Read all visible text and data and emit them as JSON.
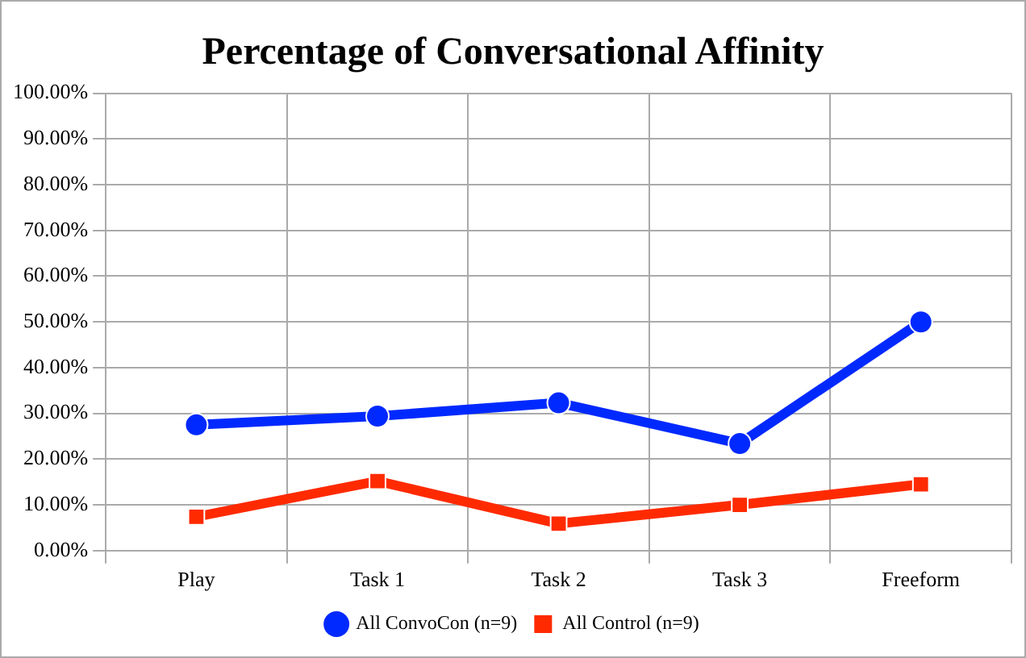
{
  "chart_data": {
    "type": "line",
    "title": "Percentage of Conversational Affinity",
    "categories": [
      "Play",
      "Task 1",
      "Task 2",
      "Task 3",
      "Freeform"
    ],
    "series": [
      {
        "name": "All ConvoCon (n=9)",
        "color": "#0029ff",
        "marker": "circle",
        "values": [
          27.5,
          29.4,
          32.3,
          23.4,
          50
        ]
      },
      {
        "name": "All Control (n=9)",
        "color": "#ff2a00",
        "marker": "square",
        "values": [
          7.4,
          15.2,
          5.9,
          10,
          14.5
        ]
      }
    ],
    "ylim": [
      0,
      100
    ],
    "yticks": [
      {
        "value": 0,
        "label": "0.00%"
      },
      {
        "value": 10,
        "label": "10.00%"
      },
      {
        "value": 20,
        "label": "20.00%"
      },
      {
        "value": 30,
        "label": "30.00%"
      },
      {
        "value": 40,
        "label": "40.00%"
      },
      {
        "value": 50,
        "label": "50.00%"
      },
      {
        "value": 60,
        "label": "60.00%"
      },
      {
        "value": 70,
        "label": "70.00%"
      },
      {
        "value": 80,
        "label": "80.00%"
      },
      {
        "value": 90,
        "label": "90.00%"
      },
      {
        "value": 100,
        "label": "100.00%"
      }
    ],
    "grid": true,
    "legend": "bottom",
    "line_style": "solid"
  }
}
